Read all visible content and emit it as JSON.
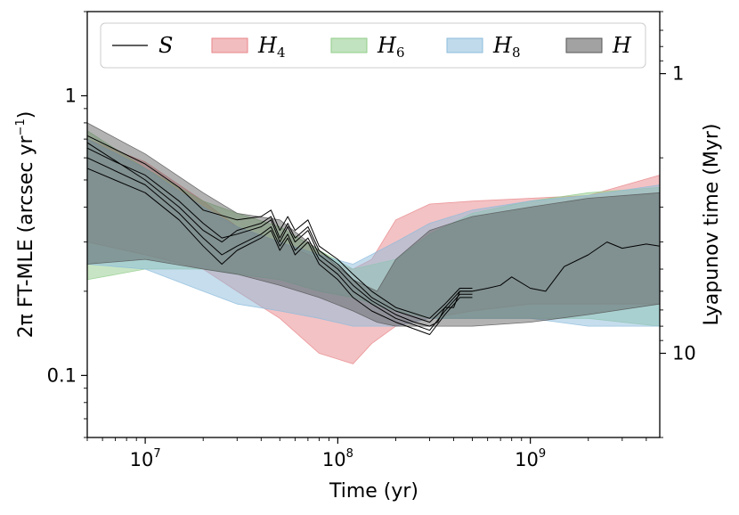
{
  "chart_data": {
    "type": "area",
    "xlabel": "Time (yr)",
    "ylabel_prefix": "2π FT-MLE (arcsec yr",
    "ylabel_exp": "−1",
    "ylabel_suffix": ")",
    "y2label": "Lyapunov time (Myr)",
    "xscale": "log",
    "yscale": "log",
    "xlim": [
      5000000,
      4700000000
    ],
    "ylim": [
      0.06,
      2.0
    ],
    "x_ticks": [
      {
        "value": 10000000,
        "base": "10",
        "exp": "7"
      },
      {
        "value": 100000000,
        "base": "10",
        "exp": "8"
      },
      {
        "value": 1000000000,
        "base": "10",
        "exp": "9"
      }
    ],
    "y_ticks": [
      {
        "value": 1,
        "label": "1"
      },
      {
        "value": 0.1,
        "label": "0.1"
      }
    ],
    "y2_ticks": [
      {
        "value": 1,
        "label": "1"
      },
      {
        "value": 10,
        "label": "10"
      }
    ],
    "legend": {
      "position": "top",
      "entries": [
        {
          "name": "S",
          "sub": "",
          "kind": "line",
          "color": "#000000"
        },
        {
          "name": "H",
          "sub": "4",
          "kind": "band",
          "color": "#e8868a"
        },
        {
          "name": "H",
          "sub": "6",
          "kind": "band",
          "color": "#90cc8a"
        },
        {
          "name": "H",
          "sub": "8",
          "kind": "band",
          "color": "#8cbcdc"
        },
        {
          "name": "H",
          "sub": "",
          "kind": "band",
          "color": "#555555"
        }
      ]
    },
    "bands": [
      {
        "name": "H4",
        "color": "#e8868a",
        "opacity": 0.5,
        "upper": [
          [
            5000000.0,
            0.7
          ],
          [
            10000000.0,
            0.58
          ],
          [
            20000000.0,
            0.42
          ],
          [
            30000000.0,
            0.34
          ],
          [
            50000000.0,
            0.3
          ],
          [
            80000000.0,
            0.26
          ],
          [
            120000000.0,
            0.24
          ],
          [
            150000000.0,
            0.26
          ],
          [
            200000000.0,
            0.36
          ],
          [
            300000000.0,
            0.41
          ],
          [
            500000000.0,
            0.42
          ],
          [
            1000000000.0,
            0.43
          ],
          [
            2000000000.0,
            0.44
          ],
          [
            4700000000.0,
            0.52
          ]
        ],
        "lower": [
          [
            5000000.0,
            0.3
          ],
          [
            10000000.0,
            0.27
          ],
          [
            20000000.0,
            0.24
          ],
          [
            30000000.0,
            0.2
          ],
          [
            50000000.0,
            0.16
          ],
          [
            80000000.0,
            0.12
          ],
          [
            120000000.0,
            0.11
          ],
          [
            150000000.0,
            0.13
          ],
          [
            200000000.0,
            0.15
          ],
          [
            300000000.0,
            0.16
          ],
          [
            500000000.0,
            0.17
          ],
          [
            1000000000.0,
            0.18
          ],
          [
            2000000000.0,
            0.18
          ],
          [
            4700000000.0,
            0.18
          ]
        ]
      },
      {
        "name": "H6",
        "color": "#90cc8a",
        "opacity": 0.5,
        "upper": [
          [
            5000000.0,
            0.75
          ],
          [
            10000000.0,
            0.55
          ],
          [
            20000000.0,
            0.42
          ],
          [
            30000000.0,
            0.38
          ],
          [
            50000000.0,
            0.34
          ],
          [
            80000000.0,
            0.28
          ],
          [
            120000000.0,
            0.24
          ],
          [
            200000000.0,
            0.26
          ],
          [
            300000000.0,
            0.32
          ],
          [
            500000000.0,
            0.38
          ],
          [
            1000000000.0,
            0.42
          ],
          [
            2000000000.0,
            0.45
          ],
          [
            4700000000.0,
            0.47
          ]
        ],
        "lower": [
          [
            5000000.0,
            0.22
          ],
          [
            10000000.0,
            0.24
          ],
          [
            20000000.0,
            0.24
          ],
          [
            30000000.0,
            0.23
          ],
          [
            50000000.0,
            0.22
          ],
          [
            80000000.0,
            0.2
          ],
          [
            120000000.0,
            0.19
          ],
          [
            200000000.0,
            0.17
          ],
          [
            300000000.0,
            0.16
          ],
          [
            500000000.0,
            0.16
          ],
          [
            1000000000.0,
            0.16
          ],
          [
            2000000000.0,
            0.16
          ],
          [
            4700000000.0,
            0.15
          ]
        ]
      },
      {
        "name": "H8",
        "color": "#8cbcdc",
        "opacity": 0.5,
        "upper": [
          [
            5000000.0,
            0.7
          ],
          [
            10000000.0,
            0.55
          ],
          [
            20000000.0,
            0.4
          ],
          [
            30000000.0,
            0.34
          ],
          [
            50000000.0,
            0.3
          ],
          [
            80000000.0,
            0.27
          ],
          [
            120000000.0,
            0.25
          ],
          [
            200000000.0,
            0.3
          ],
          [
            300000000.0,
            0.35
          ],
          [
            500000000.0,
            0.39
          ],
          [
            1000000000.0,
            0.42
          ],
          [
            2000000000.0,
            0.44
          ],
          [
            4700000000.0,
            0.48
          ]
        ],
        "lower": [
          [
            5000000.0,
            0.25
          ],
          [
            10000000.0,
            0.24
          ],
          [
            20000000.0,
            0.2
          ],
          [
            30000000.0,
            0.18
          ],
          [
            50000000.0,
            0.17
          ],
          [
            80000000.0,
            0.16
          ],
          [
            120000000.0,
            0.15
          ],
          [
            200000000.0,
            0.15
          ],
          [
            300000000.0,
            0.16
          ],
          [
            500000000.0,
            0.16
          ],
          [
            1000000000.0,
            0.16
          ],
          [
            2000000000.0,
            0.15
          ],
          [
            4700000000.0,
            0.15
          ]
        ]
      },
      {
        "name": "H",
        "color": "#555555",
        "opacity": 0.45,
        "upper": [
          [
            5000000.0,
            0.8
          ],
          [
            10000000.0,
            0.62
          ],
          [
            20000000.0,
            0.45
          ],
          [
            30000000.0,
            0.38
          ],
          [
            50000000.0,
            0.36
          ],
          [
            80000000.0,
            0.28
          ],
          [
            120000000.0,
            0.22
          ],
          [
            160000000.0,
            0.2
          ],
          [
            200000000.0,
            0.26
          ],
          [
            300000000.0,
            0.33
          ],
          [
            500000000.0,
            0.37
          ],
          [
            1000000000.0,
            0.4
          ],
          [
            2000000000.0,
            0.43
          ],
          [
            4700000000.0,
            0.45
          ]
        ],
        "lower": [
          [
            5000000.0,
            0.25
          ],
          [
            10000000.0,
            0.26
          ],
          [
            20000000.0,
            0.24
          ],
          [
            30000000.0,
            0.23
          ],
          [
            50000000.0,
            0.21
          ],
          [
            80000000.0,
            0.19
          ],
          [
            120000000.0,
            0.17
          ],
          [
            160000000.0,
            0.155
          ],
          [
            200000000.0,
            0.15
          ],
          [
            300000000.0,
            0.15
          ],
          [
            500000000.0,
            0.15
          ],
          [
            1000000000.0,
            0.155
          ],
          [
            2000000000.0,
            0.165
          ],
          [
            4700000000.0,
            0.18
          ]
        ]
      }
    ],
    "series": [
      {
        "name": "S",
        "color": "#000000",
        "width": 1.0,
        "points": [
          [
            5000000.0,
            0.65
          ],
          [
            7000000.0,
            0.58
          ],
          [
            10000000.0,
            0.52
          ],
          [
            15000000.0,
            0.42
          ],
          [
            20000000.0,
            0.35
          ],
          [
            25000000.0,
            0.31
          ],
          [
            30000000.0,
            0.32
          ],
          [
            40000000.0,
            0.34
          ],
          [
            45000000.0,
            0.36
          ],
          [
            50000000.0,
            0.3
          ],
          [
            55000000.0,
            0.34
          ],
          [
            60000000.0,
            0.3
          ],
          [
            70000000.0,
            0.33
          ],
          [
            80000000.0,
            0.27
          ],
          [
            100000000.0,
            0.24
          ],
          [
            120000000.0,
            0.21
          ],
          [
            150000000.0,
            0.185
          ],
          [
            200000000.0,
            0.165
          ],
          [
            250000000.0,
            0.155
          ],
          [
            300000000.0,
            0.15
          ],
          [
            330000000.0,
            0.155
          ],
          [
            360000000.0,
            0.175
          ],
          [
            400000000.0,
            0.175
          ],
          [
            430000000.0,
            0.2
          ],
          [
            500000000.0,
            0.2
          ],
          [
            600000000.0,
            0.205
          ],
          [
            700000000.0,
            0.21
          ],
          [
            800000000.0,
            0.225
          ],
          [
            1000000000.0,
            0.205
          ],
          [
            1200000000.0,
            0.2
          ],
          [
            1500000000.0,
            0.245
          ],
          [
            2000000000.0,
            0.27
          ],
          [
            2500000000.0,
            0.3
          ],
          [
            3000000000.0,
            0.285
          ],
          [
            4000000000.0,
            0.295
          ],
          [
            4700000000.0,
            0.29
          ]
        ]
      },
      {
        "name": "S",
        "color": "#000000",
        "width": 1.0,
        "points": [
          [
            5000000.0,
            0.72
          ],
          [
            10000000.0,
            0.57
          ],
          [
            15000000.0,
            0.47
          ],
          [
            20000000.0,
            0.39
          ],
          [
            30000000.0,
            0.36
          ],
          [
            40000000.0,
            0.37
          ],
          [
            45000000.0,
            0.39
          ],
          [
            50000000.0,
            0.33
          ],
          [
            55000000.0,
            0.37
          ],
          [
            60000000.0,
            0.33
          ],
          [
            70000000.0,
            0.36
          ],
          [
            80000000.0,
            0.29
          ],
          [
            100000000.0,
            0.26
          ],
          [
            120000000.0,
            0.23
          ],
          [
            150000000.0,
            0.2
          ],
          [
            200000000.0,
            0.175
          ],
          [
            300000000.0,
            0.16
          ],
          [
            360000000.0,
            0.18
          ],
          [
            430000000.0,
            0.205
          ],
          [
            500000000.0,
            0.205
          ]
        ]
      },
      {
        "name": "S",
        "color": "#000000",
        "width": 1.0,
        "points": [
          [
            5000000.0,
            0.6
          ],
          [
            10000000.0,
            0.48
          ],
          [
            15000000.0,
            0.38
          ],
          [
            20000000.0,
            0.31
          ],
          [
            25000000.0,
            0.27
          ],
          [
            30000000.0,
            0.29
          ],
          [
            40000000.0,
            0.32
          ],
          [
            45000000.0,
            0.34
          ],
          [
            50000000.0,
            0.29
          ],
          [
            55000000.0,
            0.32
          ],
          [
            60000000.0,
            0.28
          ],
          [
            70000000.0,
            0.31
          ],
          [
            80000000.0,
            0.26
          ],
          [
            100000000.0,
            0.23
          ],
          [
            120000000.0,
            0.2
          ],
          [
            150000000.0,
            0.18
          ],
          [
            200000000.0,
            0.16
          ],
          [
            300000000.0,
            0.145
          ],
          [
            360000000.0,
            0.17
          ],
          [
            430000000.0,
            0.195
          ],
          [
            500000000.0,
            0.195
          ]
        ]
      },
      {
        "name": "S",
        "color": "#000000",
        "width": 1.0,
        "points": [
          [
            5000000.0,
            0.68
          ],
          [
            10000000.0,
            0.5
          ],
          [
            15000000.0,
            0.4
          ],
          [
            20000000.0,
            0.33
          ],
          [
            25000000.0,
            0.3
          ],
          [
            30000000.0,
            0.33
          ],
          [
            40000000.0,
            0.35
          ],
          [
            45000000.0,
            0.37
          ],
          [
            50000000.0,
            0.31
          ],
          [
            55000000.0,
            0.35
          ],
          [
            60000000.0,
            0.31
          ],
          [
            70000000.0,
            0.34
          ],
          [
            80000000.0,
            0.28
          ],
          [
            100000000.0,
            0.25
          ],
          [
            120000000.0,
            0.22
          ],
          [
            150000000.0,
            0.19
          ],
          [
            200000000.0,
            0.17
          ],
          [
            300000000.0,
            0.155
          ],
          [
            360000000.0,
            0.175
          ],
          [
            430000000.0,
            0.2
          ],
          [
            500000000.0,
            0.2
          ]
        ]
      },
      {
        "name": "S",
        "color": "#000000",
        "width": 1.0,
        "points": [
          [
            5000000.0,
            0.55
          ],
          [
            10000000.0,
            0.45
          ],
          [
            15000000.0,
            0.36
          ],
          [
            20000000.0,
            0.29
          ],
          [
            25000000.0,
            0.25
          ],
          [
            30000000.0,
            0.28
          ],
          [
            40000000.0,
            0.31
          ],
          [
            45000000.0,
            0.33
          ],
          [
            50000000.0,
            0.28
          ],
          [
            55000000.0,
            0.31
          ],
          [
            60000000.0,
            0.27
          ],
          [
            70000000.0,
            0.3
          ],
          [
            80000000.0,
            0.25
          ],
          [
            100000000.0,
            0.22
          ],
          [
            120000000.0,
            0.19
          ],
          [
            150000000.0,
            0.17
          ],
          [
            200000000.0,
            0.155
          ],
          [
            300000000.0,
            0.14
          ],
          [
            360000000.0,
            0.165
          ],
          [
            430000000.0,
            0.19
          ],
          [
            500000000.0,
            0.19
          ]
        ]
      }
    ]
  }
}
